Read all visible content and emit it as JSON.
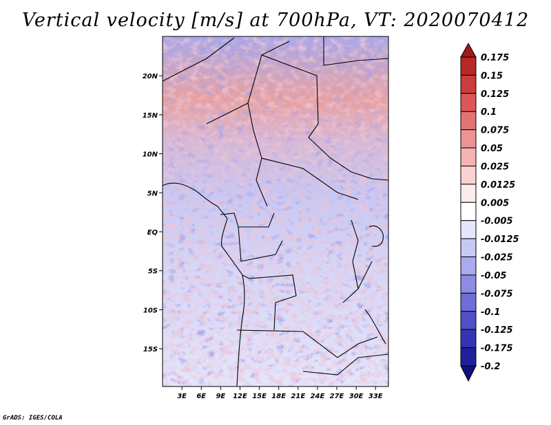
{
  "title": "Vertical velocity [m/s] at 700hPa, VT: 2020070412",
  "credit": "GrADS: IGES/COLA",
  "map": {
    "lat_labels": [
      "20N",
      "15N",
      "10N",
      "5N",
      "EQ",
      "5S",
      "10S",
      "15S"
    ],
    "lat_values": [
      20,
      15,
      10,
      5,
      0,
      -5,
      -10,
      -15
    ],
    "lon_labels": [
      "3E",
      "6E",
      "9E",
      "12E",
      "15E",
      "18E",
      "21E",
      "24E",
      "27E",
      "30E",
      "33E"
    ],
    "lon_values": [
      3,
      6,
      9,
      12,
      15,
      18,
      21,
      24,
      27,
      30,
      33
    ],
    "lon_range": [
      0,
      35
    ],
    "lat_range": [
      -20,
      25
    ]
  },
  "colorbar": {
    "labels": [
      "0.175",
      "0.15",
      "0.125",
      "0.1",
      "0.075",
      "0.05",
      "0.025",
      "0.0125",
      "0.005",
      "-0.005",
      "-0.0125",
      "-0.025",
      "-0.05",
      "-0.075",
      "-0.1",
      "-0.125",
      "-0.175",
      "-0.2"
    ],
    "colors": [
      "#a01818",
      "#b82828",
      "#cc3c3c",
      "#dc5858",
      "#e47474",
      "#ec9494",
      "#f4b4b4",
      "#fad2d2",
      "#fcecec",
      "#ffffff",
      "#e6e6fa",
      "#c8c8f4",
      "#aaaaee",
      "#8c8ce4",
      "#6e6ed8",
      "#5050c8",
      "#3434b4",
      "#20209c",
      "#10107c"
    ]
  }
}
